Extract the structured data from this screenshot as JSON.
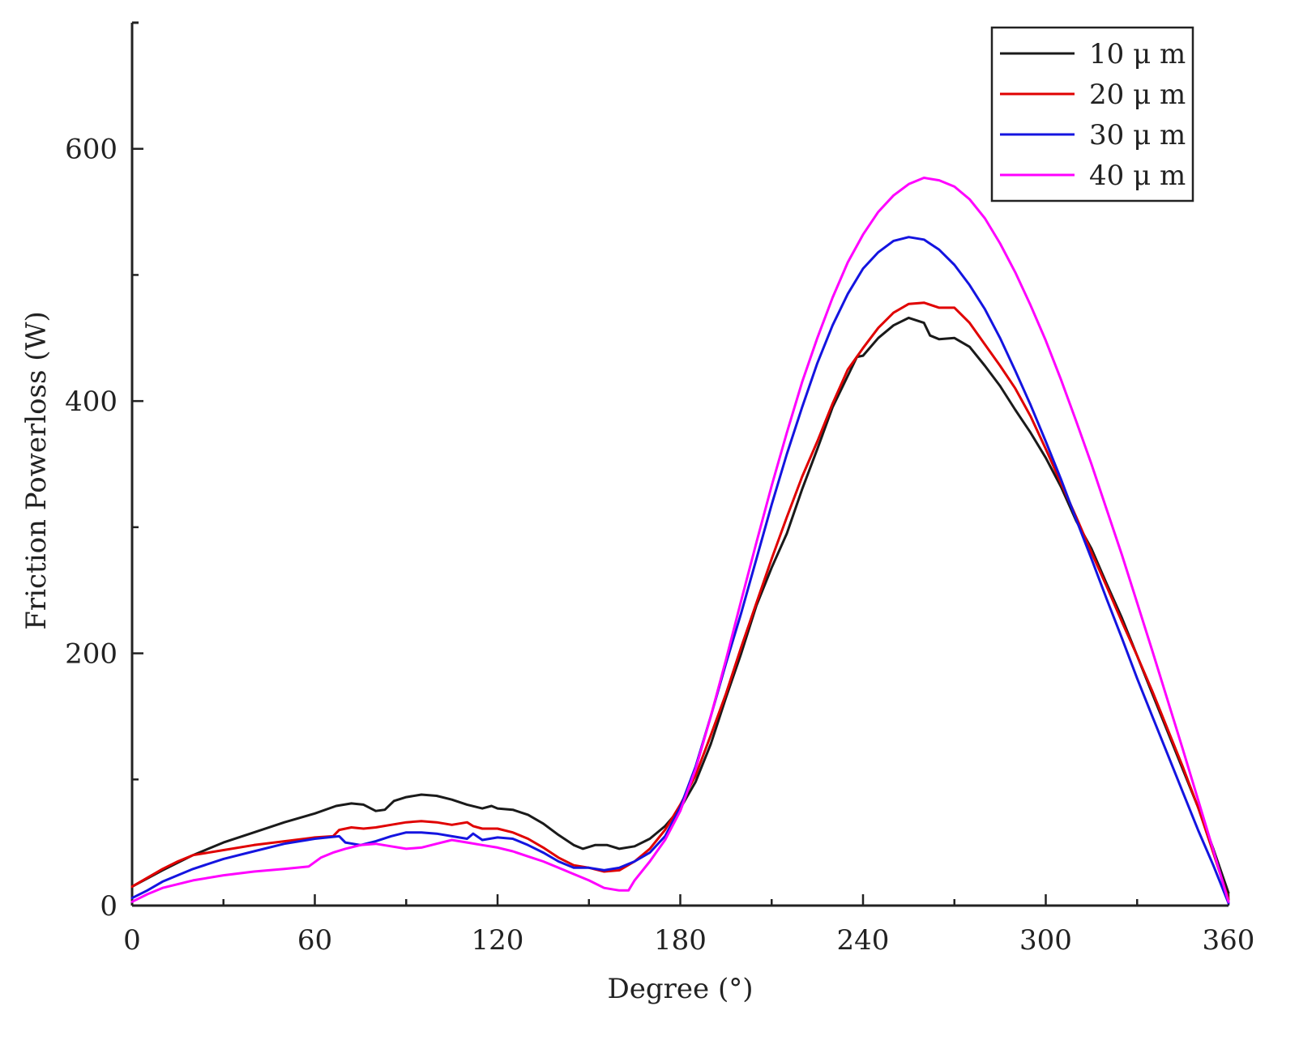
{
  "chart_data": {
    "type": "line",
    "title": "",
    "xlabel": "Degree (°)",
    "ylabel": "Friction Powerloss (W)",
    "xlim": [
      0,
      360
    ],
    "ylim": [
      0,
      700
    ],
    "x_ticks": [
      0,
      60,
      120,
      180,
      240,
      300,
      360
    ],
    "y_ticks": [
      0,
      200,
      400,
      600
    ],
    "x_tick_labels": [
      "0",
      "60",
      "120",
      "180",
      "240",
      "300",
      "360"
    ],
    "y_tick_labels": [
      "0",
      "200",
      "400",
      "600"
    ],
    "legend_position": "top-right",
    "series": [
      {
        "name": "10 μ m",
        "color": "#1a1a1a",
        "points": [
          [
            0,
            15
          ],
          [
            10,
            28
          ],
          [
            20,
            40
          ],
          [
            30,
            50
          ],
          [
            40,
            58
          ],
          [
            50,
            66
          ],
          [
            60,
            73
          ],
          [
            67,
            79
          ],
          [
            72,
            81
          ],
          [
            76,
            80
          ],
          [
            80,
            75
          ],
          [
            83,
            76
          ],
          [
            86,
            83
          ],
          [
            90,
            86
          ],
          [
            95,
            88
          ],
          [
            100,
            87
          ],
          [
            105,
            84
          ],
          [
            110,
            80
          ],
          [
            115,
            77
          ],
          [
            118,
            79
          ],
          [
            120,
            77
          ],
          [
            125,
            76
          ],
          [
            130,
            72
          ],
          [
            135,
            65
          ],
          [
            140,
            56
          ],
          [
            145,
            48
          ],
          [
            148,
            45
          ],
          [
            152,
            48
          ],
          [
            156,
            48
          ],
          [
            160,
            45
          ],
          [
            165,
            47
          ],
          [
            170,
            53
          ],
          [
            175,
            63
          ],
          [
            180,
            77
          ],
          [
            185,
            98
          ],
          [
            190,
            128
          ],
          [
            195,
            165
          ],
          [
            200,
            200
          ],
          [
            205,
            238
          ],
          [
            210,
            268
          ],
          [
            215,
            295
          ],
          [
            220,
            330
          ],
          [
            225,
            362
          ],
          [
            230,
            395
          ],
          [
            235,
            420
          ],
          [
            238,
            435
          ],
          [
            240,
            436
          ],
          [
            245,
            450
          ],
          [
            250,
            460
          ],
          [
            255,
            466
          ],
          [
            260,
            462
          ],
          [
            262,
            452
          ],
          [
            265,
            449
          ],
          [
            270,
            450
          ],
          [
            275,
            443
          ],
          [
            280,
            428
          ],
          [
            285,
            412
          ],
          [
            290,
            393
          ],
          [
            295,
            375
          ],
          [
            300,
            355
          ],
          [
            305,
            332
          ],
          [
            310,
            305
          ],
          [
            315,
            283
          ],
          [
            320,
            255
          ],
          [
            325,
            228
          ],
          [
            330,
            198
          ],
          [
            335,
            168
          ],
          [
            340,
            138
          ],
          [
            345,
            108
          ],
          [
            350,
            78
          ],
          [
            355,
            45
          ],
          [
            360,
            10
          ]
        ]
      },
      {
        "name": "20 μ m",
        "color": "#e00000",
        "points": [
          [
            0,
            15
          ],
          [
            5,
            22
          ],
          [
            10,
            29
          ],
          [
            15,
            35
          ],
          [
            20,
            40
          ],
          [
            30,
            44
          ],
          [
            40,
            48
          ],
          [
            50,
            51
          ],
          [
            60,
            54
          ],
          [
            66,
            55
          ],
          [
            68,
            60
          ],
          [
            72,
            62
          ],
          [
            76,
            61
          ],
          [
            80,
            62
          ],
          [
            85,
            64
          ],
          [
            90,
            66
          ],
          [
            95,
            67
          ],
          [
            100,
            66
          ],
          [
            105,
            64
          ],
          [
            110,
            66
          ],
          [
            112,
            63
          ],
          [
            115,
            61
          ],
          [
            120,
            61
          ],
          [
            125,
            58
          ],
          [
            130,
            53
          ],
          [
            135,
            46
          ],
          [
            140,
            38
          ],
          [
            145,
            32
          ],
          [
            150,
            30
          ],
          [
            155,
            27
          ],
          [
            160,
            28
          ],
          [
            165,
            35
          ],
          [
            170,
            45
          ],
          [
            175,
            60
          ],
          [
            180,
            80
          ],
          [
            185,
            103
          ],
          [
            190,
            135
          ],
          [
            195,
            168
          ],
          [
            200,
            205
          ],
          [
            205,
            240
          ],
          [
            210,
            275
          ],
          [
            215,
            308
          ],
          [
            220,
            340
          ],
          [
            225,
            368
          ],
          [
            230,
            398
          ],
          [
            235,
            425
          ],
          [
            240,
            442
          ],
          [
            245,
            458
          ],
          [
            250,
            470
          ],
          [
            255,
            477
          ],
          [
            260,
            478
          ],
          [
            265,
            474
          ],
          [
            270,
            474
          ],
          [
            275,
            462
          ],
          [
            280,
            445
          ],
          [
            285,
            428
          ],
          [
            290,
            410
          ],
          [
            295,
            388
          ],
          [
            300,
            362
          ],
          [
            305,
            335
          ],
          [
            310,
            308
          ],
          [
            315,
            280
          ],
          [
            320,
            253
          ],
          [
            325,
            225
          ],
          [
            330,
            198
          ],
          [
            335,
            170
          ],
          [
            340,
            140
          ],
          [
            345,
            110
          ],
          [
            350,
            78
          ],
          [
            355,
            42
          ],
          [
            360,
            5
          ]
        ]
      },
      {
        "name": "30 μ m",
        "color": "#1414e0",
        "points": [
          [
            0,
            6
          ],
          [
            5,
            12
          ],
          [
            10,
            19
          ],
          [
            20,
            29
          ],
          [
            30,
            37
          ],
          [
            40,
            43
          ],
          [
            50,
            49
          ],
          [
            60,
            53
          ],
          [
            68,
            55
          ],
          [
            70,
            50
          ],
          [
            75,
            48
          ],
          [
            80,
            51
          ],
          [
            85,
            55
          ],
          [
            90,
            58
          ],
          [
            95,
            58
          ],
          [
            100,
            57
          ],
          [
            105,
            55
          ],
          [
            110,
            53
          ],
          [
            112,
            57
          ],
          [
            115,
            52
          ],
          [
            120,
            54
          ],
          [
            125,
            53
          ],
          [
            130,
            48
          ],
          [
            135,
            42
          ],
          [
            140,
            35
          ],
          [
            145,
            30
          ],
          [
            150,
            30
          ],
          [
            155,
            28
          ],
          [
            160,
            30
          ],
          [
            165,
            35
          ],
          [
            170,
            42
          ],
          [
            175,
            55
          ],
          [
            180,
            78
          ],
          [
            185,
            110
          ],
          [
            190,
            150
          ],
          [
            195,
            192
          ],
          [
            200,
            232
          ],
          [
            205,
            275
          ],
          [
            210,
            318
          ],
          [
            215,
            358
          ],
          [
            220,
            395
          ],
          [
            225,
            430
          ],
          [
            230,
            460
          ],
          [
            235,
            485
          ],
          [
            240,
            505
          ],
          [
            245,
            518
          ],
          [
            250,
            527
          ],
          [
            255,
            530
          ],
          [
            260,
            528
          ],
          [
            265,
            520
          ],
          [
            270,
            508
          ],
          [
            275,
            492
          ],
          [
            280,
            473
          ],
          [
            285,
            450
          ],
          [
            290,
            424
          ],
          [
            295,
            397
          ],
          [
            300,
            368
          ],
          [
            305,
            338
          ],
          [
            310,
            306
          ],
          [
            315,
            275
          ],
          [
            320,
            243
          ],
          [
            325,
            212
          ],
          [
            330,
            180
          ],
          [
            335,
            150
          ],
          [
            340,
            120
          ],
          [
            345,
            90
          ],
          [
            350,
            60
          ],
          [
            355,
            32
          ],
          [
            360,
            2
          ]
        ]
      },
      {
        "name": "40 μ m",
        "color": "#ff00ff",
        "points": [
          [
            0,
            3
          ],
          [
            5,
            9
          ],
          [
            10,
            14
          ],
          [
            20,
            20
          ],
          [
            30,
            24
          ],
          [
            40,
            27
          ],
          [
            50,
            29
          ],
          [
            58,
            31
          ],
          [
            62,
            38
          ],
          [
            66,
            42
          ],
          [
            70,
            45
          ],
          [
            75,
            48
          ],
          [
            80,
            49
          ],
          [
            85,
            47
          ],
          [
            90,
            45
          ],
          [
            95,
            46
          ],
          [
            100,
            49
          ],
          [
            105,
            52
          ],
          [
            110,
            50
          ],
          [
            115,
            48
          ],
          [
            120,
            46
          ],
          [
            125,
            43
          ],
          [
            130,
            39
          ],
          [
            135,
            35
          ],
          [
            140,
            30
          ],
          [
            145,
            25
          ],
          [
            150,
            20
          ],
          [
            155,
            14
          ],
          [
            160,
            12
          ],
          [
            163,
            12
          ],
          [
            165,
            20
          ],
          [
            170,
            35
          ],
          [
            175,
            52
          ],
          [
            180,
            75
          ],
          [
            185,
            108
          ],
          [
            190,
            150
          ],
          [
            195,
            195
          ],
          [
            200,
            242
          ],
          [
            205,
            288
          ],
          [
            210,
            333
          ],
          [
            215,
            375
          ],
          [
            220,
            415
          ],
          [
            225,
            450
          ],
          [
            230,
            482
          ],
          [
            235,
            510
          ],
          [
            240,
            532
          ],
          [
            245,
            550
          ],
          [
            250,
            563
          ],
          [
            255,
            572
          ],
          [
            260,
            577
          ],
          [
            265,
            575
          ],
          [
            270,
            570
          ],
          [
            275,
            560
          ],
          [
            280,
            545
          ],
          [
            285,
            525
          ],
          [
            290,
            502
          ],
          [
            295,
            476
          ],
          [
            300,
            448
          ],
          [
            305,
            417
          ],
          [
            310,
            384
          ],
          [
            315,
            350
          ],
          [
            320,
            314
          ],
          [
            325,
            278
          ],
          [
            330,
            240
          ],
          [
            335,
            202
          ],
          [
            340,
            163
          ],
          [
            345,
            124
          ],
          [
            350,
            84
          ],
          [
            355,
            44
          ],
          [
            360,
            3
          ]
        ]
      }
    ]
  }
}
